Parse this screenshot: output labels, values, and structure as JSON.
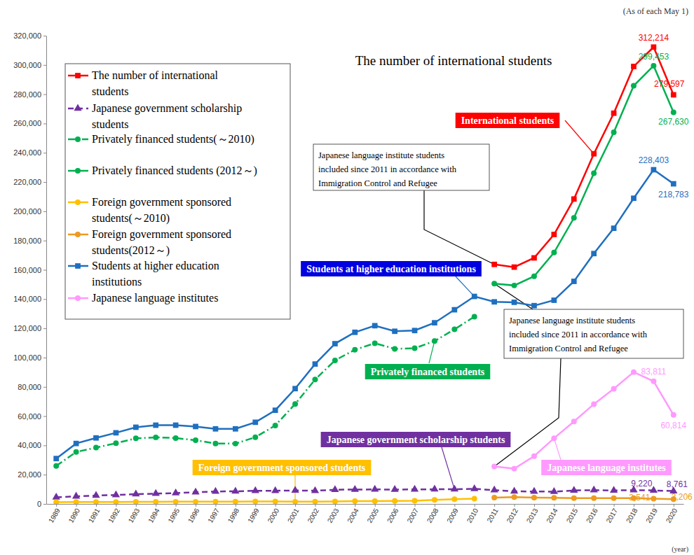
{
  "chart_data": {
    "type": "line",
    "title": "The number of international students",
    "subtitle": "(As of each May 1)",
    "xlabel": "(year)",
    "x": [
      1989,
      1990,
      1991,
      1992,
      1993,
      1994,
      1995,
      1996,
      1997,
      1998,
      1999,
      2000,
      2001,
      2002,
      2003,
      2004,
      2005,
      2006,
      2007,
      2008,
      2009,
      2010,
      2011,
      2012,
      2013,
      2014,
      2015,
      2016,
      2017,
      2018,
      2019,
      2020
    ],
    "xlim": [
      1988.5,
      2020.5
    ],
    "xticks": [
      1989,
      1990,
      1991,
      1992,
      1993,
      1994,
      1995,
      1996,
      1997,
      1998,
      1999,
      2000,
      2001,
      2002,
      2003,
      2004,
      2005,
      2006,
      2007,
      2008,
      2009,
      2010,
      2011,
      2012,
      2013,
      2014,
      2015,
      2016,
      2017,
      2018,
      2019,
      2020
    ],
    "ylim": [
      0,
      320000
    ],
    "yticks": [
      0,
      {
        "value": 20000,
        "label": "20,000"
      },
      {
        "value": 40000,
        "label": "40,000"
      },
      {
        "value": 60000,
        "label": "60,000"
      },
      {
        "value": 80000,
        "label": "80,000"
      },
      {
        "value": 100000,
        "label": "100,000"
      },
      {
        "value": 120000,
        "label": "120,000"
      },
      {
        "value": 140000,
        "label": "140,000"
      },
      {
        "value": 160000,
        "label": "160,000"
      },
      {
        "value": 180000,
        "label": "180,000"
      },
      {
        "value": 200000,
        "label": "200,000"
      },
      {
        "value": 220000,
        "label": "220,000"
      },
      {
        "value": 240000,
        "label": "240,000"
      },
      {
        "value": 260000,
        "label": "260,000"
      },
      {
        "value": 280000,
        "label": "280,000"
      },
      {
        "value": 300000,
        "label": "300,000"
      },
      {
        "value": 320000,
        "label": "320,000"
      }
    ],
    "grid": false,
    "legend": "upper left",
    "series": [
      {
        "name": "The number of international students",
        "color": "#ff0000",
        "marker": "square",
        "line_style": "solid",
        "values": [
          null,
          null,
          null,
          null,
          null,
          null,
          null,
          null,
          null,
          null,
          null,
          null,
          null,
          null,
          null,
          null,
          null,
          null,
          null,
          null,
          null,
          null,
          163697,
          161848,
          168145,
          184155,
          208379,
          239287,
          267042,
          298980,
          312214,
          279597
        ],
        "value_labels": [
          null,
          null,
          null,
          null,
          null,
          null,
          null,
          null,
          null,
          null,
          null,
          null,
          null,
          null,
          null,
          null,
          null,
          null,
          null,
          null,
          null,
          null,
          null,
          null,
          null,
          null,
          null,
          null,
          null,
          null,
          "312,214",
          "279,597"
        ]
      },
      {
        "name": "Japanese government scholarship students",
        "color": "#7030a0",
        "marker": "triangle",
        "line_style": "dashed",
        "values": [
          4500,
          5200,
          5700,
          6100,
          6700,
          7000,
          7400,
          8000,
          8500,
          8600,
          9000,
          9000,
          9200,
          9000,
          9700,
          9800,
          9900,
          9800,
          9900,
          10000,
          10000,
          10300,
          9400,
          8600,
          8500,
          8400,
          9200,
          9400,
          9200,
          9400,
          9220,
          8761
        ],
        "value_labels": [
          null,
          null,
          null,
          null,
          null,
          null,
          null,
          null,
          null,
          null,
          null,
          null,
          null,
          null,
          null,
          null,
          null,
          null,
          null,
          null,
          null,
          null,
          null,
          null,
          null,
          null,
          null,
          null,
          null,
          null,
          "9,220",
          "8,761"
        ]
      },
      {
        "name": "Privately financed students(～2010)",
        "color": "#00b050",
        "marker": "circle",
        "line_style": "dashdot",
        "values": [
          26000,
          35500,
          38500,
          41500,
          44800,
          45500,
          45000,
          43500,
          41300,
          41200,
          45600,
          53600,
          68300,
          85000,
          98100,
          105400,
          109800,
          106000,
          106400,
          111300,
          119300,
          128000,
          null,
          null,
          null,
          null,
          null,
          null,
          null,
          null,
          null,
          null
        ]
      },
      {
        "name": "Privately financed students (2012～)",
        "color": "#00b050",
        "marker": "circle",
        "line_style": "solid",
        "values": [
          null,
          null,
          null,
          null,
          null,
          null,
          null,
          null,
          null,
          null,
          null,
          null,
          null,
          null,
          null,
          null,
          null,
          null,
          null,
          null,
          null,
          null,
          150500,
          149300,
          155600,
          171800,
          195500,
          226000,
          254000,
          285800,
          299453,
          267630
        ],
        "value_labels": [
          null,
          null,
          null,
          null,
          null,
          null,
          null,
          null,
          null,
          null,
          null,
          null,
          null,
          null,
          null,
          null,
          null,
          null,
          null,
          null,
          null,
          null,
          null,
          null,
          null,
          null,
          null,
          null,
          null,
          null,
          "299,453",
          "267,630"
        ]
      },
      {
        "name": "Foreign government sponsored students(～2010)",
        "color": "#ffc000",
        "marker": "circle",
        "line_style": "solid",
        "values": [
          1200,
          1300,
          1300,
          1300,
          1400,
          1400,
          1500,
          1500,
          1600,
          1600,
          1700,
          1700,
          1500,
          1600,
          1700,
          1900,
          1900,
          2000,
          2200,
          2800,
          3200,
          3600,
          null,
          null,
          null,
          null,
          null,
          null,
          null,
          null,
          null,
          null
        ]
      },
      {
        "name": "Foreign government sponsored students(2012～)",
        "color": "#ed9b21",
        "marker": "circle",
        "line_style": "solid",
        "values": [
          null,
          null,
          null,
          null,
          null,
          null,
          null,
          null,
          null,
          null,
          null,
          null,
          null,
          null,
          null,
          null,
          null,
          null,
          null,
          null,
          null,
          null,
          4300,
          4700,
          4300,
          4200,
          4000,
          4000,
          3900,
          3900,
          3541,
          3206
        ],
        "value_labels": [
          null,
          null,
          null,
          null,
          null,
          null,
          null,
          null,
          null,
          null,
          null,
          null,
          null,
          null,
          null,
          null,
          null,
          null,
          null,
          null,
          null,
          null,
          null,
          null,
          null,
          null,
          null,
          null,
          null,
          null,
          "3,541",
          "3,206"
        ]
      },
      {
        "name": "Students at higher education institutions",
        "color": "#1f6fbf",
        "marker": "square",
        "line_style": "solid",
        "values": [
          31000,
          41300,
          45100,
          48600,
          52400,
          53800,
          53800,
          52900,
          51300,
          51300,
          55800,
          64000,
          78800,
          95600,
          109500,
          117300,
          121800,
          118000,
          118500,
          123800,
          132700,
          141800,
          138100,
          137800,
          135500,
          139200,
          152100,
          171100,
          188400,
          208900,
          228403,
          218783
        ],
        "value_labels": [
          null,
          null,
          null,
          null,
          null,
          null,
          null,
          null,
          null,
          null,
          null,
          null,
          null,
          null,
          null,
          null,
          null,
          null,
          null,
          null,
          null,
          null,
          null,
          null,
          null,
          null,
          null,
          null,
          null,
          null,
          "228,403",
          "218,783"
        ]
      },
      {
        "name": "Japanese language institutes",
        "color": "#ff99ff",
        "marker": "circle",
        "line_style": "solid",
        "values": [
          null,
          null,
          null,
          null,
          null,
          null,
          null,
          null,
          null,
          null,
          null,
          null,
          null,
          null,
          null,
          null,
          null,
          null,
          null,
          null,
          null,
          null,
          25600,
          24100,
          32600,
          44900,
          56300,
          68200,
          78700,
          90100,
          83811,
          60814
        ],
        "value_labels": [
          null,
          null,
          null,
          null,
          null,
          null,
          null,
          null,
          null,
          null,
          null,
          null,
          null,
          null,
          null,
          null,
          null,
          null,
          null,
          null,
          null,
          null,
          null,
          null,
          null,
          null,
          null,
          null,
          null,
          null,
          "83,811",
          "60,814"
        ]
      }
    ],
    "annotations": [
      {
        "text": "International students"
      },
      {
        "text": "Students at higher education institutions"
      },
      {
        "text": "Privately financed students"
      },
      {
        "text": "Japanese government scholarship students"
      },
      {
        "text": "Foreign government sponsored students"
      },
      {
        "text": "Japanese language institutes"
      },
      {
        "text": [
          "Japanese language institute students",
          "included since 2011 in accordance with",
          "Immigration Control and Refugee"
        ]
      },
      {
        "text": [
          "Japanese language institute students",
          "included since 2011 in accordance with",
          "Immigration Control and Refugee"
        ]
      }
    ]
  }
}
